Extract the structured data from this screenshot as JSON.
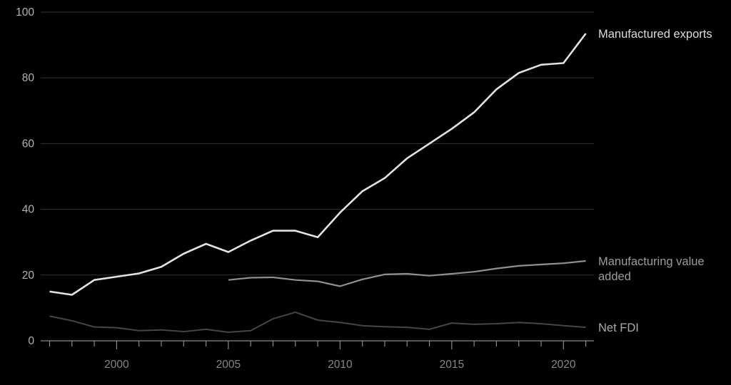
{
  "colors": {
    "background": "#000000",
    "gridline": "#333333",
    "axis_line": "#8a8a8a",
    "tick": "#8a8a8a",
    "y_tick_label": "#b2b2b2",
    "x_tick_label": "#868686"
  },
  "chart_data": {
    "type": "line",
    "title": "",
    "xlabel": "",
    "ylabel": "",
    "ylim": [
      0,
      100
    ],
    "yticks": [
      0,
      20,
      40,
      60,
      80,
      100
    ],
    "ytick_labels": [
      "0",
      "20",
      "40",
      "60",
      "80",
      "100"
    ],
    "x_range": [
      1997,
      2021
    ],
    "xticks_labeled": [
      2000,
      2005,
      2010,
      2015,
      2020
    ],
    "xtick_labels": [
      "2000",
      "2005",
      "2010",
      "2015",
      "2020"
    ],
    "grid": "horizontal",
    "legend_position": "right-of-line-ends",
    "series": [
      {
        "name": "Manufactured exports",
        "label_lines": [
          "Manufactured exports"
        ],
        "color": "#e3e3e3",
        "label_color": "#dcdcdc",
        "stroke_width": 2.6,
        "start_year": 1997,
        "values": [
          15,
          14,
          18.5,
          19.5,
          20.5,
          22.5,
          26.5,
          29.5,
          27,
          30.5,
          33.5,
          33.5,
          31.5,
          39,
          45.5,
          49.5,
          55.5,
          60,
          64.5,
          69.5,
          76.5,
          81.5,
          84,
          84.5,
          93.5
        ]
      },
      {
        "name": "Manufacturing value added",
        "label_lines": [
          "Manufacturing value",
          "added"
        ],
        "color": "#909090",
        "label_color": "#9c9c9c",
        "stroke_width": 2.2,
        "start_year": 2005,
        "values": [
          18.5,
          19.2,
          19.3,
          18.5,
          18.1,
          16.6,
          18.7,
          20.2,
          20.4,
          19.8,
          20.4,
          21,
          22,
          22.8,
          23.2,
          23.6,
          24.3
        ]
      },
      {
        "name": "Net FDI",
        "label_lines": [
          "Net FDI"
        ],
        "color": "#454545",
        "label_color": "#ababab",
        "stroke_width": 2,
        "start_year": 1997,
        "values": [
          7.5,
          6.1,
          4.2,
          4,
          3.1,
          3.3,
          2.8,
          3.5,
          2.6,
          3.1,
          6.7,
          8.7,
          6.3,
          5.6,
          4.6,
          4.3,
          4.1,
          3.5,
          5.4,
          5,
          5.2,
          5.6,
          5.2,
          4.6,
          4.1
        ]
      }
    ]
  }
}
